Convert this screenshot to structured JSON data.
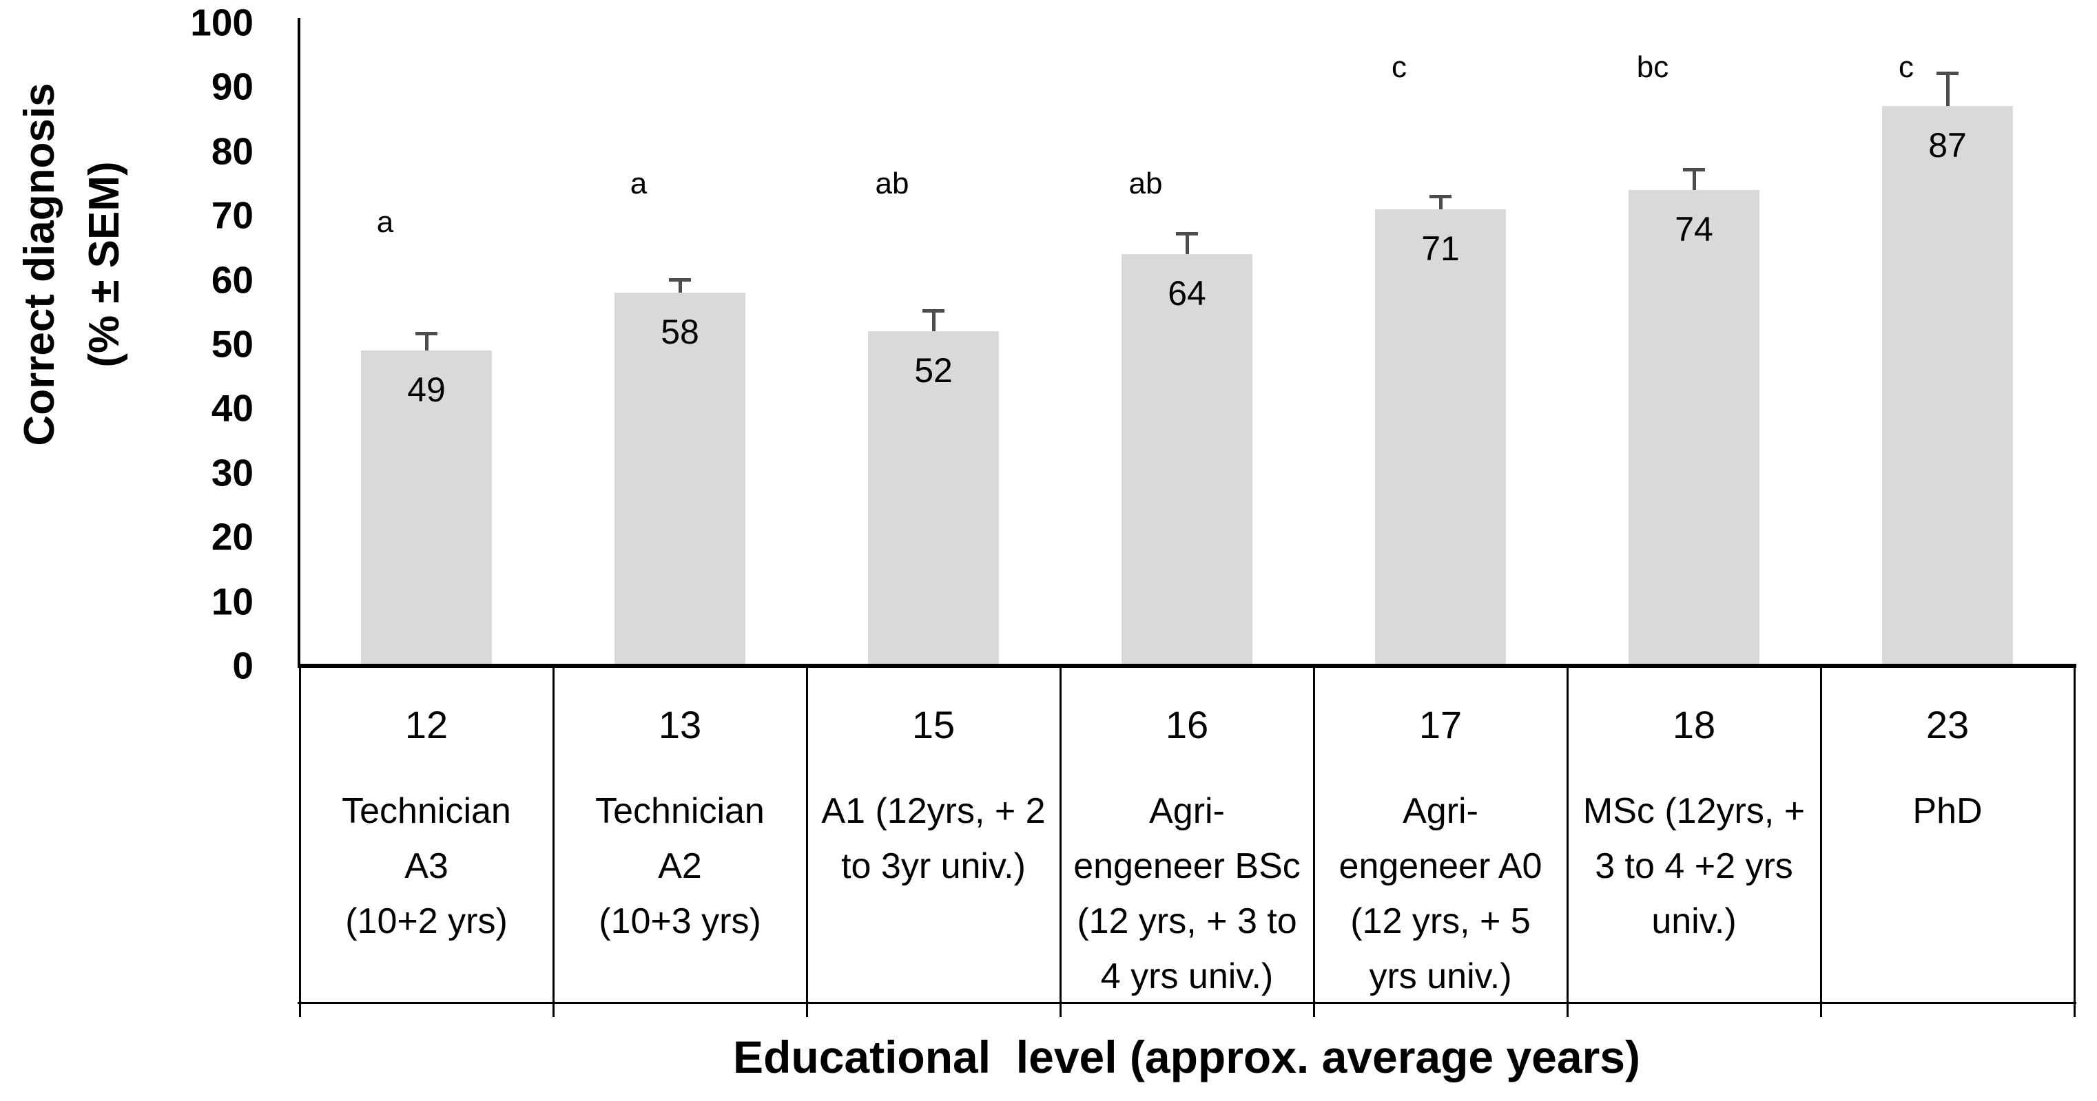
{
  "chart_data": {
    "type": "bar",
    "title": "",
    "ylabel": "Correct  diagnosis\n(% ± SEM)",
    "xlabel": "Educational  level (approx. average years)",
    "ylim": [
      0,
      100
    ],
    "ytick_step": 10,
    "yticks": [
      0,
      10,
      20,
      30,
      40,
      50,
      60,
      70,
      80,
      90,
      100
    ],
    "grid": "off",
    "legend": "none",
    "bar_color": "#d9d9d9",
    "error_bar_color": "#4d4d4d",
    "axis_color": "#000000",
    "categories": [
      {
        "years": "12",
        "label_lines": [
          "Technician",
          "A3",
          "(10+2 yrs)"
        ]
      },
      {
        "years": "13",
        "label_lines": [
          "Technician",
          "A2",
          "(10+3 yrs)"
        ]
      },
      {
        "years": "15",
        "label_lines": [
          "A1 (12yrs, + 2",
          "to 3yr univ.)"
        ]
      },
      {
        "years": "16",
        "label_lines": [
          "Agri-",
          "engeneer BSc",
          "(12 yrs, + 3 to",
          "4 yrs univ.)"
        ]
      },
      {
        "years": "17",
        "label_lines": [
          "Agri-",
          "engeneer A0",
          "(12 yrs, + 5",
          "yrs univ.)"
        ]
      },
      {
        "years": "18",
        "label_lines": [
          "MSc (12yrs, +",
          "3 to 4 +2 yrs",
          "univ.)"
        ]
      },
      {
        "years": "23",
        "label_lines": [
          "PhD"
        ]
      }
    ],
    "values": [
      49,
      58,
      52,
      64,
      71,
      74,
      87
    ],
    "sem": [
      2.5,
      1.8,
      3,
      3,
      1.8,
      3,
      5
    ],
    "sig_letters": [
      "a",
      "a",
      "ab",
      "ab",
      "c",
      "bc",
      "c"
    ],
    "sig_letter_heights": [
      69,
      75,
      75,
      75,
      93,
      93,
      93
    ]
  }
}
